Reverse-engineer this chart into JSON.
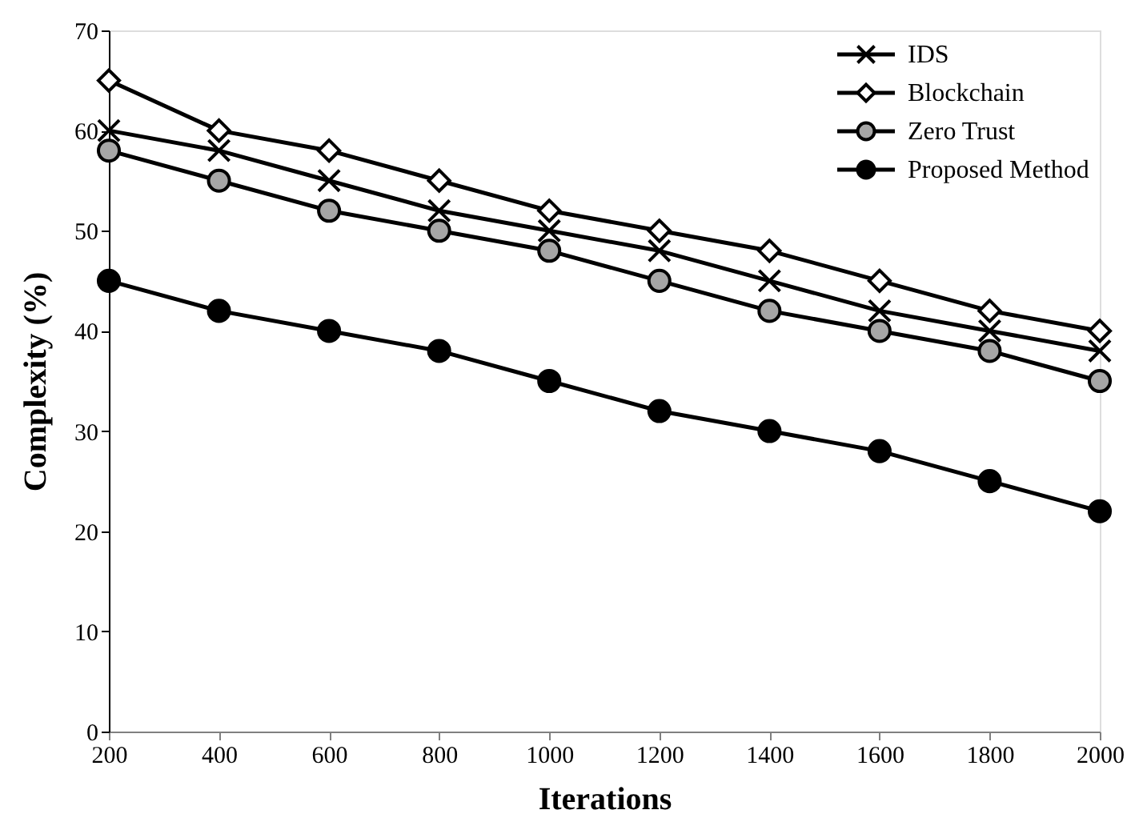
{
  "chart_data": {
    "type": "line",
    "xlabel": "Iterations",
    "ylabel": "Complexity (%)",
    "x": [
      200,
      400,
      600,
      800,
      1000,
      1200,
      1400,
      1600,
      1800,
      2000
    ],
    "series": [
      {
        "name": "IDS",
        "color": "#000000",
        "marker": "cross",
        "values": [
          60,
          58,
          55,
          52,
          50,
          48,
          45,
          42,
          40,
          38
        ]
      },
      {
        "name": "Blockchain",
        "color": "#ffffff",
        "marker": "diamond",
        "values": [
          65,
          60,
          58,
          55,
          52,
          50,
          48,
          45,
          42,
          40
        ]
      },
      {
        "name": "Zero Trust",
        "color": "#a6a6a6",
        "marker": "circle",
        "values": [
          58,
          55,
          52,
          50,
          48,
          45,
          42,
          40,
          38,
          35
        ]
      },
      {
        "name": "Proposed Method",
        "color": "#000000",
        "marker": "circle",
        "values": [
          45,
          42,
          40,
          38,
          35,
          32,
          30,
          28,
          25,
          22
        ]
      }
    ],
    "xlim": [
      200,
      2000
    ],
    "xticks": [
      200,
      400,
      600,
      800,
      1000,
      1200,
      1400,
      1600,
      1800,
      2000
    ],
    "ylim": [
      0,
      70
    ],
    "yticks": [
      0,
      10,
      20,
      30,
      40,
      50,
      60,
      70
    ],
    "grid": false,
    "legend": "top right",
    "line_style": "solid"
  }
}
